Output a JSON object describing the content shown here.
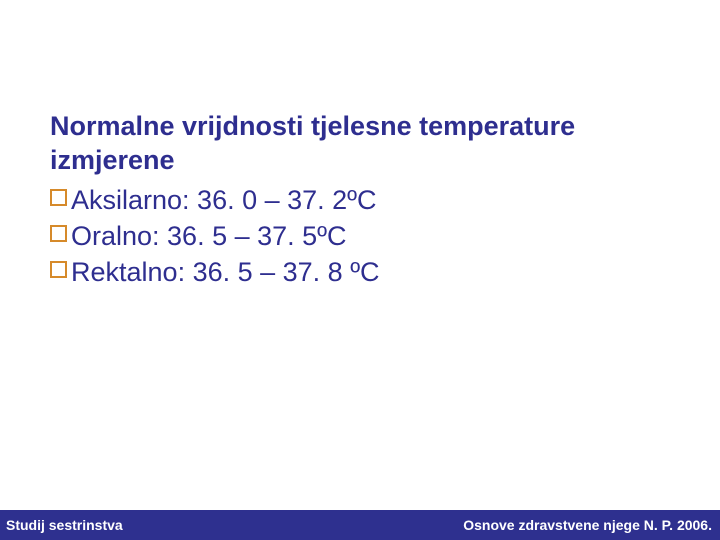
{
  "colors": {
    "text_primary": "#2e2e8f",
    "bullet_border": "#d68a2a",
    "footer_bg": "#2e308f",
    "footer_text": "#ffffff",
    "background": "#ffffff"
  },
  "typography": {
    "heading_fontsize": 27,
    "bullet_fontsize": 27,
    "footer_fontsize": 14,
    "heading_weight": "bold"
  },
  "heading": {
    "line1": "Normalne vrijdnosti tjelesne temperature",
    "line2": "izmjerene"
  },
  "bullets": [
    {
      "text": "Aksilarno: 36. 0 – 37. 2ºC"
    },
    {
      "text": "Oralno: 36. 5 – 37. 5ºC"
    },
    {
      "text": "Rektalno: 36. 5 – 37. 8 ºC"
    }
  ],
  "footer": {
    "left": "Studij sestrinstva",
    "right": "Osnove zdravstvene njege N. P. 2006."
  }
}
